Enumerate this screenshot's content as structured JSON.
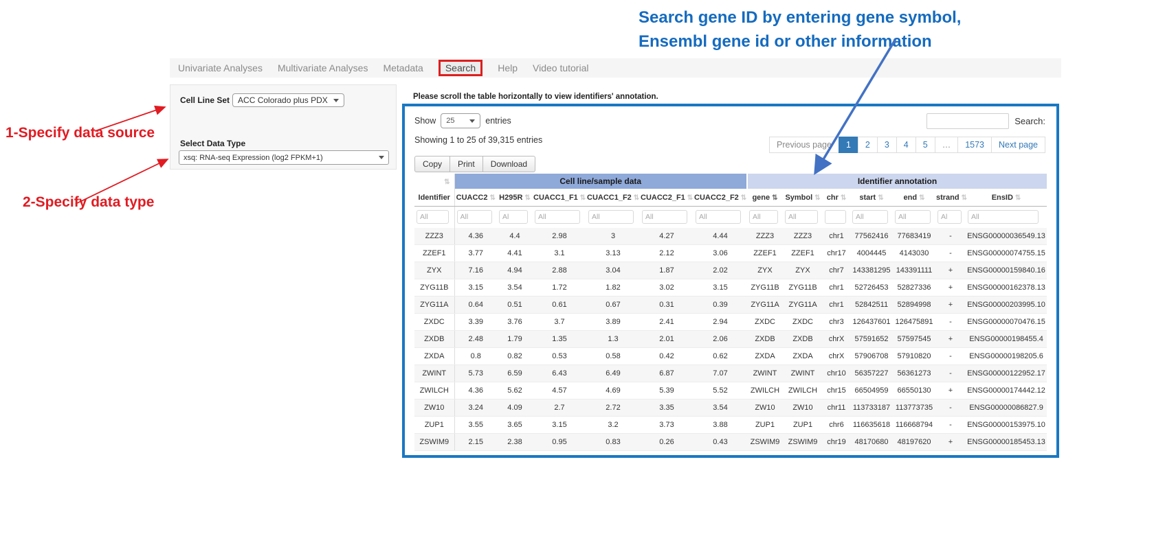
{
  "annotations": {
    "step1": "1-Specify data source",
    "step2": "2-Specify data type",
    "search_note_line1": "Search gene ID by entering gene symbol,",
    "search_note_line2": "Ensembl gene id or other information"
  },
  "nav": {
    "items": [
      "Univariate Analyses",
      "Multivariate Analyses",
      "Metadata",
      "Search",
      "Help",
      "Video tutorial"
    ],
    "highlighted": "Search"
  },
  "panel": {
    "cell_line_set_label": "Cell Line Set",
    "cell_line_set_value": "ACC Colorado plus PDX",
    "data_type_label": "Select Data Type",
    "data_type_value": "xsq: RNA-seq Expression (log2 FPKM+1)"
  },
  "table_section": {
    "scroll_note": "Please scroll the table horizontally to view identifiers' annotation.",
    "show_label": "Show",
    "page_length": "25",
    "entries_label": "entries",
    "showing_text": "Showing 1 to 25 of 39,315 entries",
    "search_label": "Search:",
    "buttons": [
      "Copy",
      "Print",
      "Download"
    ],
    "pagination": {
      "prev": "Previous page",
      "pages": [
        "1",
        "2",
        "3",
        "4",
        "5",
        "…",
        "1573"
      ],
      "active": "1",
      "next": "Next page"
    }
  },
  "table": {
    "group_headers": [
      {
        "label": "",
        "span": 1
      },
      {
        "label": "Cell line/sample data",
        "span": 6
      },
      {
        "label": "Identifier annotation",
        "span": 7
      }
    ],
    "columns": [
      "Identifier",
      "CUACC2",
      "H295R",
      "CUACC1_F1",
      "CUACC1_F2",
      "CUACC2_F1",
      "CUACC2_F2",
      "gene",
      "Symbol",
      "chr",
      "start",
      "end",
      "strand",
      "EnsID"
    ],
    "sorted_column": "gene",
    "filters": [
      "All",
      "All",
      "Al",
      "All",
      "All",
      "All",
      "All",
      "All",
      "All",
      "",
      "All",
      "All",
      "Al",
      "All"
    ],
    "rows": [
      [
        "ZZZ3",
        "4.36",
        "4.4",
        "2.98",
        "3",
        "4.27",
        "4.44",
        "ZZZ3",
        "ZZZ3",
        "chr1",
        "77562416",
        "77683419",
        "-",
        "ENSG00000036549.13"
      ],
      [
        "ZZEF1",
        "3.77",
        "4.41",
        "3.1",
        "3.13",
        "2.12",
        "3.06",
        "ZZEF1",
        "ZZEF1",
        "chr17",
        "4004445",
        "4143030",
        "-",
        "ENSG00000074755.15"
      ],
      [
        "ZYX",
        "7.16",
        "4.94",
        "2.88",
        "3.04",
        "1.87",
        "2.02",
        "ZYX",
        "ZYX",
        "chr7",
        "143381295",
        "143391111",
        "+",
        "ENSG00000159840.16"
      ],
      [
        "ZYG11B",
        "3.15",
        "3.54",
        "1.72",
        "1.82",
        "3.02",
        "3.15",
        "ZYG11B",
        "ZYG11B",
        "chr1",
        "52726453",
        "52827336",
        "+",
        "ENSG00000162378.13"
      ],
      [
        "ZYG11A",
        "0.64",
        "0.51",
        "0.61",
        "0.67",
        "0.31",
        "0.39",
        "ZYG11A",
        "ZYG11A",
        "chr1",
        "52842511",
        "52894998",
        "+",
        "ENSG00000203995.10"
      ],
      [
        "ZXDC",
        "3.39",
        "3.76",
        "3.7",
        "3.89",
        "2.41",
        "2.94",
        "ZXDC",
        "ZXDC",
        "chr3",
        "126437601",
        "126475891",
        "-",
        "ENSG00000070476.15"
      ],
      [
        "ZXDB",
        "2.48",
        "1.79",
        "1.35",
        "1.3",
        "2.01",
        "2.06",
        "ZXDB",
        "ZXDB",
        "chrX",
        "57591652",
        "57597545",
        "+",
        "ENSG00000198455.4"
      ],
      [
        "ZXDA",
        "0.8",
        "0.82",
        "0.53",
        "0.58",
        "0.42",
        "0.62",
        "ZXDA",
        "ZXDA",
        "chrX",
        "57906708",
        "57910820",
        "-",
        "ENSG00000198205.6"
      ],
      [
        "ZWINT",
        "5.73",
        "6.59",
        "6.43",
        "6.49",
        "6.87",
        "7.07",
        "ZWINT",
        "ZWINT",
        "chr10",
        "56357227",
        "56361273",
        "-",
        "ENSG00000122952.17"
      ],
      [
        "ZWILCH",
        "4.36",
        "5.62",
        "4.57",
        "4.69",
        "5.39",
        "5.52",
        "ZWILCH",
        "ZWILCH",
        "chr15",
        "66504959",
        "66550130",
        "+",
        "ENSG00000174442.12"
      ],
      [
        "ZW10",
        "3.24",
        "4.09",
        "2.7",
        "2.72",
        "3.35",
        "3.54",
        "ZW10",
        "ZW10",
        "chr11",
        "113733187",
        "113773735",
        "-",
        "ENSG00000086827.9"
      ],
      [
        "ZUP1",
        "3.55",
        "3.65",
        "3.15",
        "3.2",
        "3.73",
        "3.88",
        "ZUP1",
        "ZUP1",
        "chr6",
        "116635618",
        "116668794",
        "-",
        "ENSG00000153975.10"
      ],
      [
        "ZSWIM9",
        "2.15",
        "2.38",
        "0.95",
        "0.83",
        "0.26",
        "0.43",
        "ZSWIM9",
        "ZSWIM9",
        "chr19",
        "48170680",
        "48197620",
        "+",
        "ENSG00000185453.13"
      ]
    ]
  },
  "colors": {
    "accent_blue_border": "#1878c2",
    "group_header_dark": "#8fa9d9",
    "group_header_light": "#ccd6ee",
    "active_page": "#337ab7",
    "annotation_red": "#e11b22",
    "annotation_blue": "#156bbf",
    "arrow_blue": "#4372c4"
  }
}
